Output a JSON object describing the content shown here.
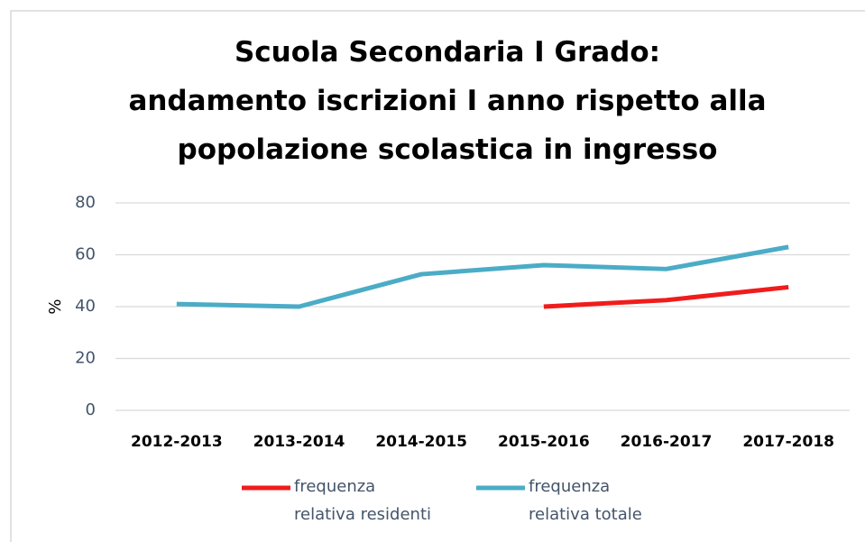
{
  "chart_data": {
    "type": "line",
    "title": [
      "Scuola Secondaria I Grado:",
      "andamento iscrizioni I anno rispetto  alla",
      "popolazione scolastica in ingresso"
    ],
    "y_label": "%",
    "categories": [
      "2012-2013",
      "2013-2014",
      "2014-2015",
      "2015-2016",
      "2016-2017",
      "2017-2018"
    ],
    "series": [
      {
        "name": "frequenza relativa residenti",
        "color": "#f01c1c",
        "values": [
          null,
          null,
          null,
          40,
          42.5,
          47.5
        ]
      },
      {
        "name": "frequenza relativa totale",
        "color": "#4bacc6",
        "values": [
          41,
          40,
          52.5,
          56,
          54.5,
          63
        ]
      }
    ],
    "ylim": [
      0,
      80
    ],
    "yticks": [
      0,
      20,
      40,
      60,
      80
    ],
    "grid": true,
    "legend": "bottom"
  }
}
